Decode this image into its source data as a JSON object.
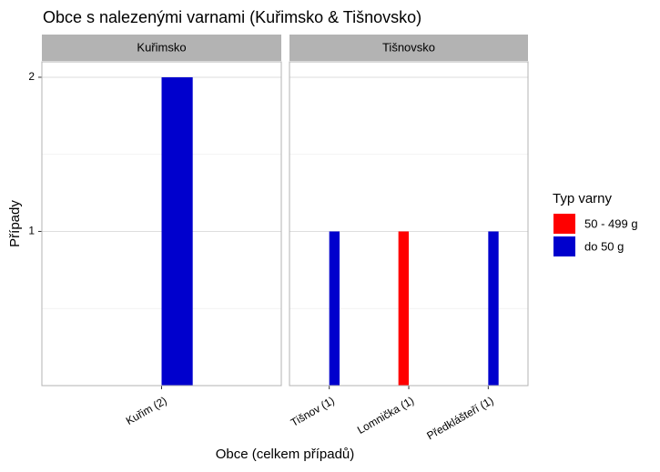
{
  "chart_data": {
    "type": "bar",
    "title": "Obce s nalezenými varnami (Kuřimsko & Tišnovsko)",
    "x_label": "Obce (celkem případů)",
    "y_label": "Případy",
    "legend_title": "Typ varny",
    "legend": "right",
    "grid": true,
    "ylim": [
      0,
      2.1
    ],
    "yticks": [
      1,
      2
    ],
    "yminor": [
      0.5,
      1.5
    ],
    "series_styles": [
      {
        "name": "50 - 499 g",
        "color": "#ff0000"
      },
      {
        "name": "do 50 g",
        "color": "#0000cd"
      }
    ],
    "facets": [
      {
        "name": "Kuřimsko",
        "categories": [
          "Kuřim (2)"
        ],
        "series": [
          {
            "name": "50 - 499 g",
            "color": "#ff0000",
            "values": [
              null
            ]
          },
          {
            "name": "do 50 g",
            "color": "#0000cd",
            "values": [
              2
            ]
          }
        ]
      },
      {
        "name": "Tišnovsko",
        "categories": [
          "Tišnov (1)",
          "Lomnička (1)",
          "Předklášteří (1)"
        ],
        "series": [
          {
            "name": "50 - 499 g",
            "color": "#ff0000",
            "values": [
              null,
              1,
              null
            ]
          },
          {
            "name": "do 50 g",
            "color": "#0000cd",
            "values": [
              1,
              null,
              1
            ]
          }
        ]
      }
    ]
  }
}
